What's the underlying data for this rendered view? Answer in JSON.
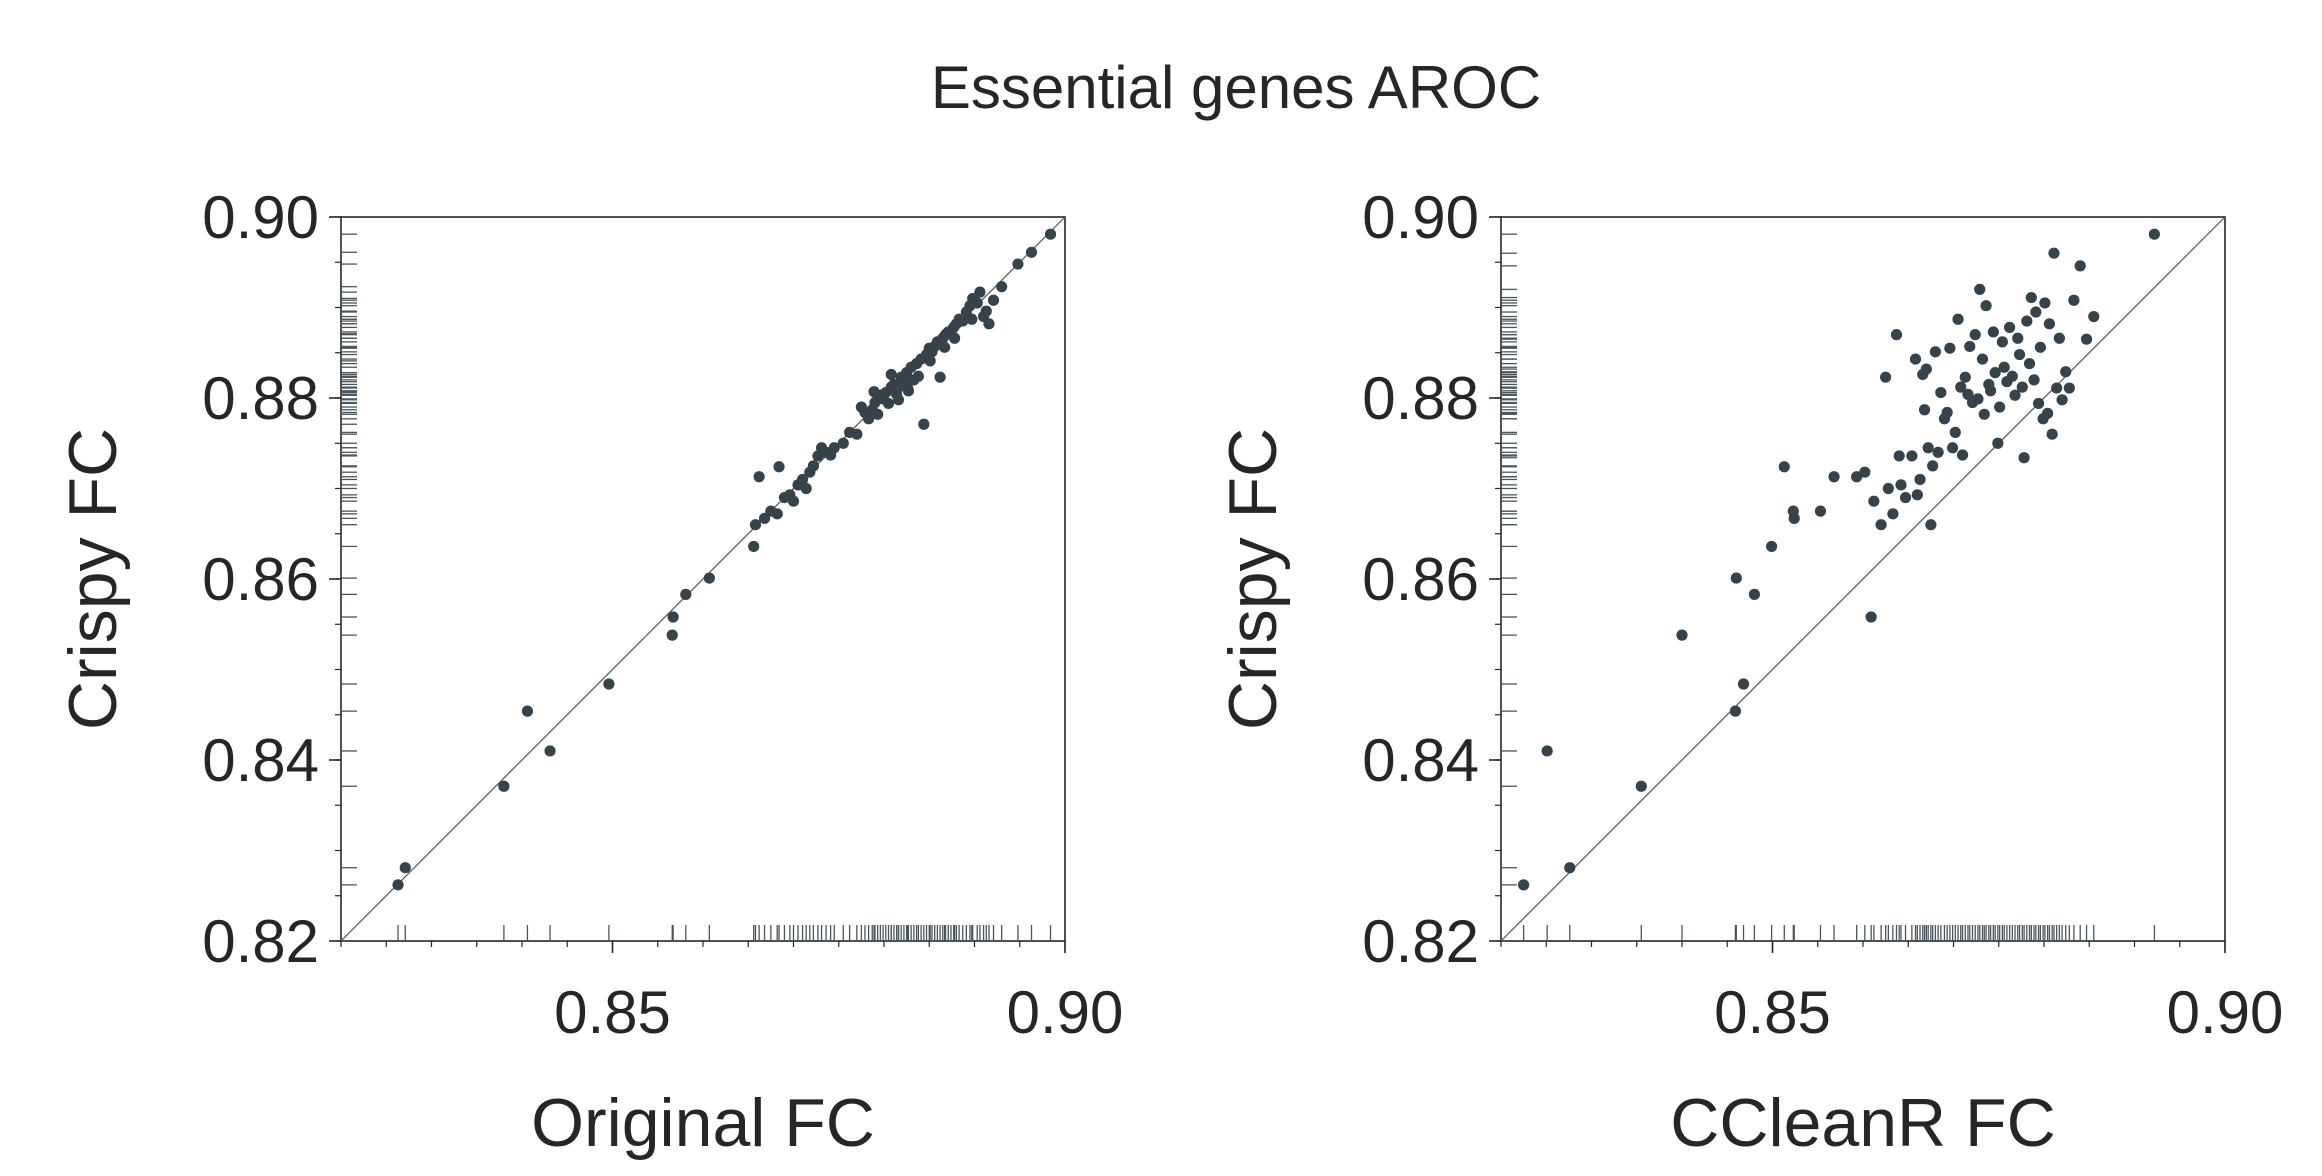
{
  "chart_data": [
    {
      "type": "scatter",
      "title": "Essential genes AROC",
      "xlabel": "Original FC",
      "ylabel": "Crispy FC",
      "xlim": [
        0.82,
        0.9
      ],
      "ylim": [
        0.82,
        0.9
      ],
      "x_ticks": [
        0.85,
        0.9
      ],
      "x_tick_labels": [
        "0.85",
        "0.90"
      ],
      "y_ticks": [
        0.82,
        0.84,
        0.86,
        0.88,
        0.9
      ],
      "y_tick_labels": [
        "0.82",
        "0.84",
        "0.86",
        "0.88",
        "0.90"
      ],
      "diagonal": true,
      "rug": true,
      "point_color": "#37434a",
      "points": [
        [
          0.8263,
          0.8262
        ],
        [
          0.8271,
          0.8281
        ],
        [
          0.838,
          0.8371
        ],
        [
          0.8406,
          0.8454
        ],
        [
          0.8431,
          0.841
        ],
        [
          0.8496,
          0.8484
        ],
        [
          0.8566,
          0.8538
        ],
        [
          0.8567,
          0.8558
        ],
        [
          0.8581,
          0.8583
        ],
        [
          0.8607,
          0.8601
        ],
        [
          0.8656,
          0.8636
        ],
        [
          0.8658,
          0.866
        ],
        [
          0.8662,
          0.8713
        ],
        [
          0.8668,
          0.8667
        ],
        [
          0.8675,
          0.8675
        ],
        [
          0.8682,
          0.8672
        ],
        [
          0.8684,
          0.8724
        ],
        [
          0.869,
          0.869
        ],
        [
          0.8696,
          0.8693
        ],
        [
          0.87,
          0.8686
        ],
        [
          0.8705,
          0.8704
        ],
        [
          0.871,
          0.871
        ],
        [
          0.8714,
          0.87
        ],
        [
          0.8718,
          0.8718
        ],
        [
          0.8722,
          0.8725
        ],
        [
          0.8727,
          0.8736
        ],
        [
          0.8731,
          0.8745
        ],
        [
          0.8736,
          0.874
        ],
        [
          0.8741,
          0.8737
        ],
        [
          0.8745,
          0.8745
        ],
        [
          0.8755,
          0.875
        ],
        [
          0.8762,
          0.8762
        ],
        [
          0.877,
          0.876
        ],
        [
          0.8775,
          0.879
        ],
        [
          0.8779,
          0.8784
        ],
        [
          0.8783,
          0.8777
        ],
        [
          0.8787,
          0.8787
        ],
        [
          0.879,
          0.8795
        ],
        [
          0.8793,
          0.8782
        ],
        [
          0.8796,
          0.8803
        ],
        [
          0.8799,
          0.8799
        ],
        [
          0.8802,
          0.8806
        ],
        [
          0.8805,
          0.8794
        ],
        [
          0.8808,
          0.8812
        ],
        [
          0.8811,
          0.8815
        ],
        [
          0.8814,
          0.8804
        ],
        [
          0.8816,
          0.8812
        ],
        [
          0.8819,
          0.8823
        ],
        [
          0.8822,
          0.8818
        ],
        [
          0.8825,
          0.8828
        ],
        [
          0.8827,
          0.8808
        ],
        [
          0.883,
          0.8834
        ],
        [
          0.8833,
          0.882
        ],
        [
          0.8836,
          0.8838
        ],
        [
          0.8838,
          0.8824
        ],
        [
          0.8841,
          0.8843
        ],
        [
          0.8844,
          0.8771
        ],
        [
          0.8847,
          0.8848
        ],
        [
          0.885,
          0.8855
        ],
        [
          0.8853,
          0.8851
        ],
        [
          0.8856,
          0.8857
        ],
        [
          0.8859,
          0.8862
        ],
        [
          0.8862,
          0.8823
        ],
        [
          0.8865,
          0.8866
        ],
        [
          0.8868,
          0.887
        ],
        [
          0.8871,
          0.8873
        ],
        [
          0.8874,
          0.8871
        ],
        [
          0.8877,
          0.8878
        ],
        [
          0.888,
          0.8882
        ],
        [
          0.8883,
          0.8887
        ],
        [
          0.8887,
          0.8885
        ],
        [
          0.8891,
          0.8895
        ],
        [
          0.8895,
          0.8902
        ],
        [
          0.8898,
          0.891
        ],
        [
          0.8903,
          0.8905
        ],
        [
          0.891,
          0.889
        ],
        [
          0.8913,
          0.8896
        ],
        [
          0.8916,
          0.8882
        ],
        [
          0.8921,
          0.8908
        ],
        [
          0.893,
          0.8923
        ],
        [
          0.8948,
          0.8948
        ],
        [
          0.8963,
          0.8961
        ],
        [
          0.8984,
          0.8981
        ],
        [
          0.8808,
          0.8826
        ],
        [
          0.8789,
          0.8807
        ],
        [
          0.8816,
          0.8798
        ],
        [
          0.8826,
          0.8811
        ],
        [
          0.8851,
          0.8841
        ],
        [
          0.8867,
          0.8856
        ],
        [
          0.8878,
          0.8866
        ],
        [
          0.8897,
          0.8887
        ],
        [
          0.8906,
          0.8917
        ]
      ]
    },
    {
      "type": "scatter",
      "xlabel": "CCleanR FC",
      "ylabel": "Crispy FC",
      "xlim": [
        0.82,
        0.9
      ],
      "ylim": [
        0.82,
        0.9
      ],
      "x_ticks": [
        0.85,
        0.9
      ],
      "x_tick_labels": [
        "0.85",
        "0.90"
      ],
      "y_ticks": [
        0.82,
        0.84,
        0.86,
        0.88,
        0.9
      ],
      "y_tick_labels": [
        "0.82",
        "0.84",
        "0.86",
        "0.88",
        "0.90"
      ],
      "diagonal": true,
      "rug": true,
      "point_color": "#37434a",
      "points": [
        [
          0.8225,
          0.8262
        ],
        [
          0.8251,
          0.841
        ],
        [
          0.8276,
          0.8281
        ],
        [
          0.8355,
          0.8371
        ],
        [
          0.84,
          0.8538
        ],
        [
          0.8459,
          0.8454
        ],
        [
          0.846,
          0.8601
        ],
        [
          0.8468,
          0.8484
        ],
        [
          0.848,
          0.8583
        ],
        [
          0.8499,
          0.8636
        ],
        [
          0.8513,
          0.8724
        ],
        [
          0.8523,
          0.8675
        ],
        [
          0.8524,
          0.8667
        ],
        [
          0.8553,
          0.8675
        ],
        [
          0.8568,
          0.8713
        ],
        [
          0.8593,
          0.8713
        ],
        [
          0.8602,
          0.8718
        ],
        [
          0.8609,
          0.8558
        ],
        [
          0.8612,
          0.8686
        ],
        [
          0.862,
          0.866
        ],
        [
          0.8625,
          0.8823
        ],
        [
          0.8628,
          0.87
        ],
        [
          0.8633,
          0.8672
        ],
        [
          0.8637,
          0.887
        ],
        [
          0.864,
          0.8736
        ],
        [
          0.8642,
          0.8704
        ],
        [
          0.8647,
          0.869
        ],
        [
          0.8654,
          0.8736
        ],
        [
          0.8658,
          0.8843
        ],
        [
          0.866,
          0.8693
        ],
        [
          0.8663,
          0.871
        ],
        [
          0.8666,
          0.8826
        ],
        [
          0.8668,
          0.8787
        ],
        [
          0.867,
          0.8832
        ],
        [
          0.8672,
          0.8745
        ],
        [
          0.8675,
          0.866
        ],
        [
          0.8677,
          0.8725
        ],
        [
          0.868,
          0.8851
        ],
        [
          0.8683,
          0.874
        ],
        [
          0.8686,
          0.8806
        ],
        [
          0.869,
          0.8777
        ],
        [
          0.8693,
          0.8784
        ],
        [
          0.8696,
          0.8855
        ],
        [
          0.8699,
          0.8745
        ],
        [
          0.8702,
          0.8762
        ],
        [
          0.8705,
          0.8887
        ],
        [
          0.8708,
          0.8812
        ],
        [
          0.871,
          0.8737
        ],
        [
          0.8713,
          0.8823
        ],
        [
          0.8716,
          0.8804
        ],
        [
          0.8718,
          0.8857
        ],
        [
          0.8721,
          0.8795
        ],
        [
          0.8724,
          0.887
        ],
        [
          0.8727,
          0.8799
        ],
        [
          0.8729,
          0.892
        ],
        [
          0.8732,
          0.8843
        ],
        [
          0.8734,
          0.8782
        ],
        [
          0.8736,
          0.8902
        ],
        [
          0.8739,
          0.8815
        ],
        [
          0.8741,
          0.8808
        ],
        [
          0.8744,
          0.8873
        ],
        [
          0.8746,
          0.8828
        ],
        [
          0.8749,
          0.875
        ],
        [
          0.8751,
          0.879
        ],
        [
          0.8754,
          0.8862
        ],
        [
          0.8756,
          0.8834
        ],
        [
          0.8759,
          0.8818
        ],
        [
          0.8762,
          0.8878
        ],
        [
          0.8765,
          0.8824
        ],
        [
          0.8768,
          0.8803
        ],
        [
          0.8771,
          0.8866
        ],
        [
          0.8773,
          0.8848
        ],
        [
          0.8776,
          0.8812
        ],
        [
          0.8778,
          0.8734
        ],
        [
          0.8781,
          0.8885
        ],
        [
          0.8784,
          0.8838
        ],
        [
          0.8786,
          0.8911
        ],
        [
          0.8789,
          0.882
        ],
        [
          0.8791,
          0.8895
        ],
        [
          0.8794,
          0.8794
        ],
        [
          0.8796,
          0.8856
        ],
        [
          0.8799,
          0.8777
        ],
        [
          0.8801,
          0.8905
        ],
        [
          0.8804,
          0.8783
        ],
        [
          0.8806,
          0.8882
        ],
        [
          0.8809,
          0.876
        ],
        [
          0.8811,
          0.896
        ],
        [
          0.8814,
          0.8811
        ],
        [
          0.8817,
          0.8866
        ],
        [
          0.882,
          0.8798
        ],
        [
          0.8824,
          0.8829
        ],
        [
          0.8828,
          0.8811
        ],
        [
          0.8833,
          0.8908
        ],
        [
          0.884,
          0.8946
        ],
        [
          0.8847,
          0.8865
        ],
        [
          0.8855,
          0.889
        ],
        [
          0.8922,
          0.8981
        ]
      ]
    }
  ]
}
